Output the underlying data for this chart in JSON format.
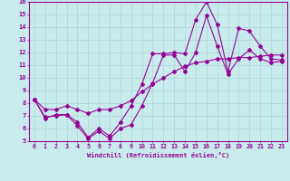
{
  "xlabel": "Windchill (Refroidissement éolien,°C)",
  "ylabel": "",
  "xlim": [
    -0.5,
    23.5
  ],
  "ylim": [
    5,
    16
  ],
  "xticks": [
    0,
    1,
    2,
    3,
    4,
    5,
    6,
    7,
    8,
    9,
    10,
    11,
    12,
    13,
    14,
    15,
    16,
    17,
    18,
    19,
    20,
    21,
    22,
    23
  ],
  "yticks": [
    5,
    6,
    7,
    8,
    9,
    10,
    11,
    12,
    13,
    14,
    15,
    16
  ],
  "background_color": "#c8eceb",
  "grid_color": "#b0d8d8",
  "line_color": "#990099",
  "series1_x": [
    0,
    1,
    2,
    3,
    4,
    5,
    6,
    7,
    8,
    9,
    10,
    11,
    12,
    13,
    14,
    15,
    16,
    17,
    18,
    19,
    20,
    21,
    22,
    23
  ],
  "series1_y": [
    8.3,
    6.8,
    7.1,
    7.1,
    6.5,
    5.3,
    6.0,
    5.4,
    6.5,
    7.8,
    9.5,
    11.9,
    11.9,
    12.0,
    11.9,
    14.6,
    16.0,
    14.2,
    10.5,
    13.9,
    13.7,
    12.5,
    11.5,
    11.4
  ],
  "series2_x": [
    0,
    1,
    2,
    3,
    4,
    5,
    6,
    7,
    8,
    9,
    10,
    11,
    12,
    13,
    14,
    15,
    16,
    17,
    18,
    19,
    20,
    21,
    22,
    23
  ],
  "series2_y": [
    8.3,
    7.5,
    7.5,
    7.8,
    7.5,
    7.2,
    7.5,
    7.5,
    7.8,
    8.2,
    8.9,
    9.5,
    10.0,
    10.5,
    10.9,
    11.2,
    11.3,
    11.5,
    11.5,
    11.6,
    11.6,
    11.7,
    11.8,
    11.8
  ],
  "series3_x": [
    0,
    1,
    2,
    3,
    4,
    5,
    6,
    7,
    8,
    9,
    10,
    11,
    12,
    13,
    14,
    15,
    16,
    17,
    18,
    19,
    20,
    21,
    22,
    23
  ],
  "series3_y": [
    8.3,
    6.9,
    7.0,
    7.1,
    6.2,
    5.2,
    5.8,
    5.2,
    6.0,
    6.3,
    7.8,
    9.6,
    11.8,
    11.8,
    10.5,
    12.0,
    14.9,
    12.5,
    10.3,
    11.5,
    12.2,
    11.5,
    11.2,
    11.3
  ]
}
